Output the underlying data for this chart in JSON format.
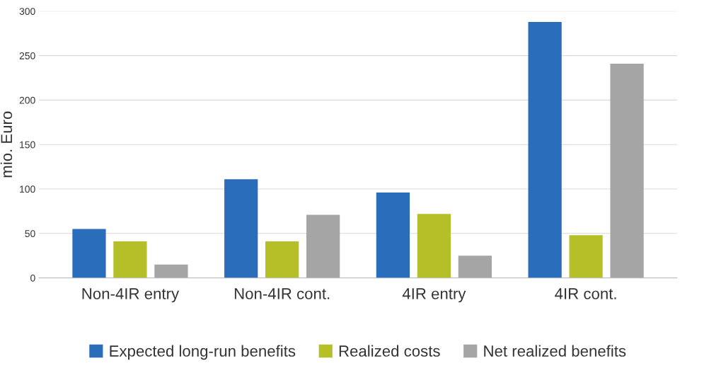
{
  "chart_data": {
    "type": "bar",
    "ylabel": "mio. Euro",
    "categories": [
      "Non-4IR entry",
      "Non-4IR cont.",
      "4IR entry",
      "4IR cont."
    ],
    "series": [
      {
        "name": "Expected long-run benefits",
        "color": "#2a6ebb",
        "values": [
          55,
          111,
          96,
          288
        ]
      },
      {
        "name": "Realized costs",
        "color": "#b5bf28",
        "values": [
          41,
          41,
          72,
          48
        ]
      },
      {
        "name": "Net realized benefits",
        "color": "#a5a5a5",
        "values": [
          15,
          71,
          25,
          241
        ]
      }
    ],
    "ylim": [
      0,
      300
    ],
    "yticks": [
      0,
      50,
      100,
      150,
      200,
      250,
      300
    ],
    "grid": "y",
    "legend": "bottom"
  }
}
